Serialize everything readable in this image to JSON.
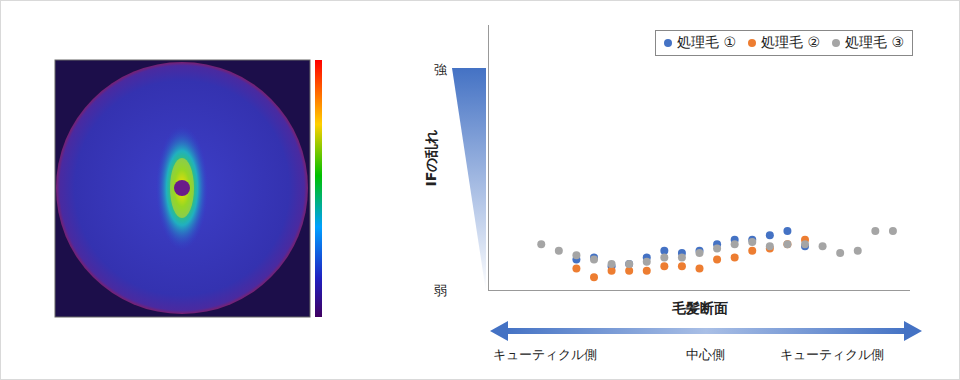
{
  "chart_data": {
    "type": "scatter",
    "x_label": "毛髪断面",
    "y_label": "IFの乱れ",
    "x": [
      0,
      1,
      2,
      3,
      4,
      5,
      6,
      7,
      8,
      9,
      10,
      11,
      12,
      13,
      14,
      15,
      16,
      17,
      18,
      19,
      20
    ],
    "series": [
      {
        "name": "処理毛 ①",
        "color": "#4472c4",
        "values": [
          null,
          null,
          1.4,
          1.5,
          1.1,
          1.2,
          1.5,
          1.8,
          1.7,
          1.8,
          2.1,
          2.3,
          2.3,
          2.5,
          2.7,
          2.0,
          null,
          null,
          null,
          null,
          null
        ]
      },
      {
        "name": "処理毛 ②",
        "color": "#ed7d31",
        "values": [
          null,
          null,
          1.0,
          0.6,
          0.9,
          0.9,
          0.9,
          1.1,
          1.1,
          1.0,
          1.4,
          1.5,
          1.8,
          1.9,
          2.1,
          2.3,
          null,
          null,
          null,
          null,
          null
        ]
      },
      {
        "name": "処理毛 ③",
        "color": "#a5a5a5",
        "values": [
          2.1,
          1.8,
          1.6,
          1.4,
          1.2,
          1.2,
          1.3,
          1.5,
          1.5,
          1.7,
          1.9,
          2.1,
          2.2,
          2.0,
          2.1,
          2.1,
          2.0,
          1.7,
          1.8,
          2.7,
          2.7
        ]
      }
    ],
    "xlim": [
      -3,
      21
    ],
    "ylim": [
      0,
      12
    ],
    "yticks": [
      {
        "value": 0,
        "label": "弱"
      },
      {
        "value": 10,
        "label": "強"
      }
    ],
    "tick_labels": "y",
    "legend": "top-right",
    "marker": "circle",
    "annotations": [
      "キューティクル側",
      "中心側",
      "キューティクル側"
    ]
  }
}
